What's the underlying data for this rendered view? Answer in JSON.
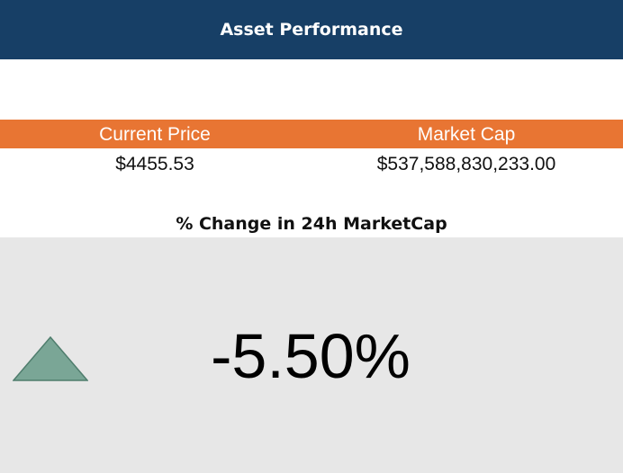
{
  "header": {
    "title": "Asset Performance"
  },
  "metrics": {
    "current_price_label": "Current Price",
    "market_cap_label": "Market Cap",
    "current_price_value": "$4455.53",
    "market_cap_value": "$537,588,830,233.00"
  },
  "change": {
    "title": "% Change in 24h MarketCap",
    "value": "-5.50%",
    "indicator_icon": "triangle-up-icon",
    "indicator_color": "#7aa696"
  },
  "colors": {
    "header_bg": "#173f66",
    "column_header_bg": "#e87533",
    "panel_bg": "#e7e7e7"
  }
}
